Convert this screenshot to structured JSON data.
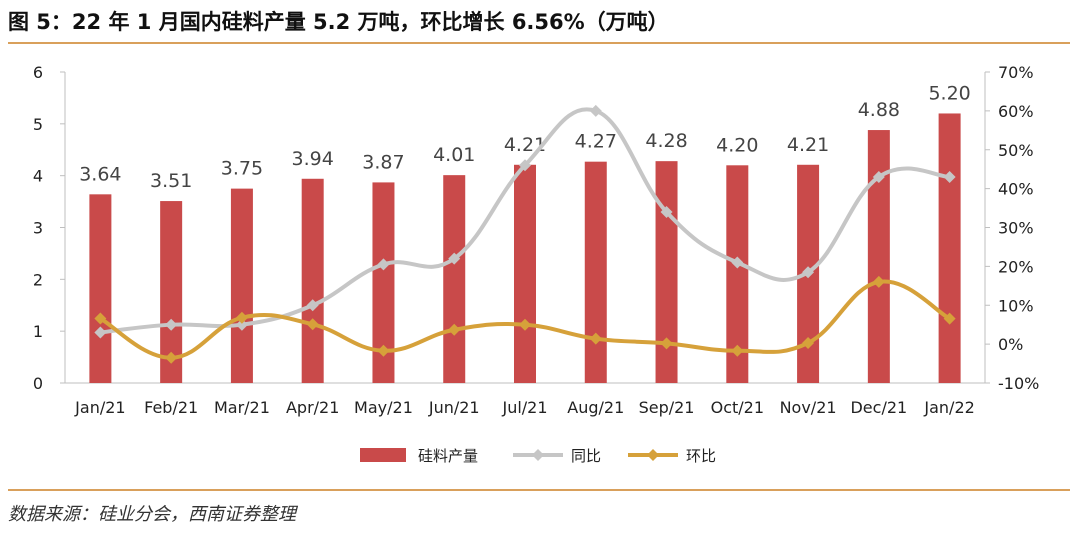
{
  "figure": {
    "title": "图 5：22 年 1 月国内硅料产量 5.2 万吨，环比增长 6.56%（万吨）",
    "source": "数据来源：硅业分会，西南证券整理"
  },
  "colors": {
    "bar": "#c94a4a",
    "yoy_line": "#c6c6c6",
    "mom_line": "#d6a13a",
    "rule": "#d9a05b"
  },
  "chart_data": {
    "type": "bar",
    "categories": [
      "Jan/21",
      "Feb/21",
      "Mar/21",
      "Apr/21",
      "May/21",
      "Jun/21",
      "Jul/21",
      "Aug/21",
      "Sep/21",
      "Oct/21",
      "Nov/21",
      "Dec/21",
      "Jan/22"
    ],
    "series": [
      {
        "name": "硅料产量",
        "type": "bar",
        "axis": "left",
        "values": [
          3.64,
          3.51,
          3.75,
          3.94,
          3.87,
          4.01,
          4.21,
          4.27,
          4.28,
          4.2,
          4.21,
          4.88,
          5.2
        ],
        "data_labels": [
          "3.64",
          "3.51",
          "3.75",
          "3.94",
          "3.87",
          "4.01",
          "4.21",
          "4.27",
          "4.28",
          "4.20",
          "4.21",
          "4.88",
          "5.20"
        ]
      },
      {
        "name": "同比",
        "type": "line",
        "axis": "right",
        "smooth": true,
        "unit": "%",
        "values": [
          3,
          5,
          5,
          10,
          20.5,
          22,
          46,
          60,
          34,
          21,
          18.5,
          43,
          43
        ]
      },
      {
        "name": "环比",
        "type": "line",
        "axis": "right",
        "smooth": true,
        "unit": "%",
        "values": [
          6.6,
          -3.5,
          6.8,
          5.1,
          -1.7,
          3.7,
          5,
          1.4,
          0.2,
          -1.7,
          0.3,
          16,
          6.56
        ]
      }
    ],
    "y_left": {
      "lim": [
        0,
        6
      ],
      "ticks": [
        "0",
        "1",
        "2",
        "3",
        "4",
        "5",
        "6"
      ]
    },
    "y_right": {
      "lim": [
        -10,
        70
      ],
      "ticks": [
        "-10%",
        "0%",
        "10%",
        "20%",
        "30%",
        "40%",
        "50%",
        "60%",
        "70%"
      ]
    },
    "legend_position": "bottom",
    "grid": false
  }
}
